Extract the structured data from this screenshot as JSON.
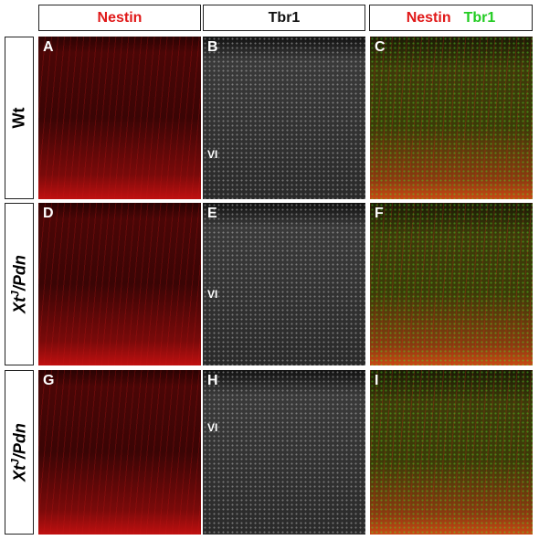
{
  "column_headers": [
    {
      "text": "Nestin"
    },
    {
      "text": "Tbr1"
    },
    {
      "parts": [
        "Nestin",
        "Tbr1"
      ]
    }
  ],
  "row_labels": [
    {
      "text": "Wt"
    },
    {
      "base": "Xt",
      "superscript": "J",
      "suffix": "/Pdn"
    },
    {
      "base": "Xt",
      "superscript": "J",
      "suffix": "/Pdn"
    }
  ],
  "panels": [
    {
      "letter": "A"
    },
    {
      "letter": "B",
      "layer_label": "VI"
    },
    {
      "letter": "C"
    },
    {
      "letter": "D"
    },
    {
      "letter": "E",
      "layer_label": "VI"
    },
    {
      "letter": "F"
    },
    {
      "letter": "G"
    },
    {
      "letter": "H",
      "layer_label": "VI"
    },
    {
      "letter": "I"
    }
  ]
}
